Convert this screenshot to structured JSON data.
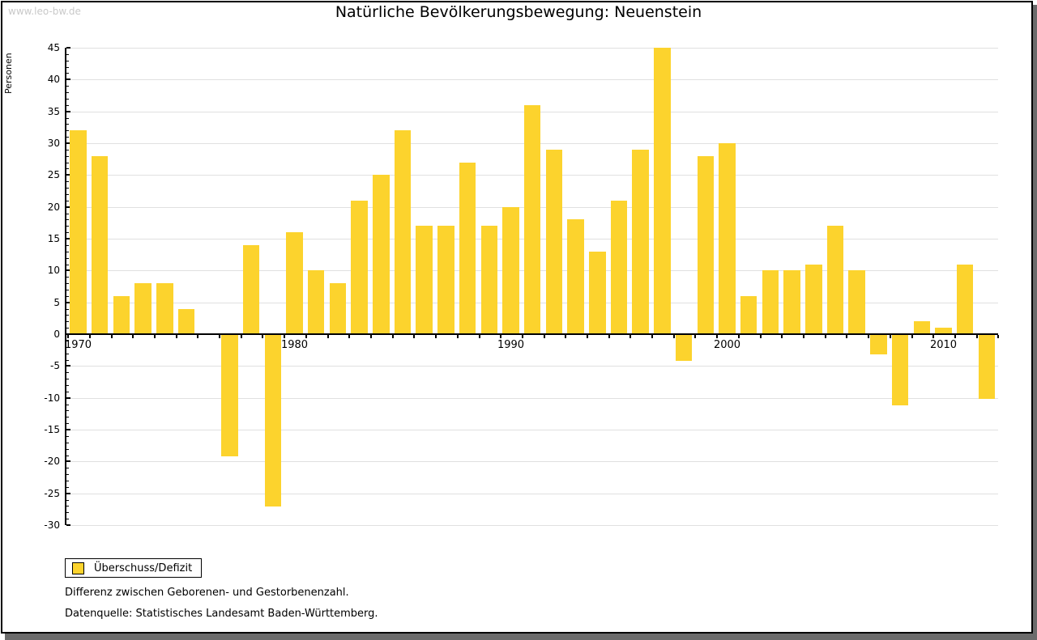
{
  "watermark": "www.leo-bw.de",
  "title": "Natürliche Bevölkerungsbewegung: Neuenstein",
  "legend": {
    "label": "Überschuss/Defizit"
  },
  "footnotes": [
    "Differenz zwischen Geborenen- und Gestorbenenzahl.",
    "Datenquelle: Statistisches Landesamt Baden-Württemberg."
  ],
  "colors": {
    "bar": "#FCD32D",
    "grid": "#E0E0E0",
    "axis": "#000000",
    "text": "#000000",
    "watermark": "#C9C9C9",
    "shadow": "#6B6B6B",
    "legend_border": "#000000",
    "background": "#FFFFFF"
  },
  "chart_data": {
    "type": "bar",
    "title": "Natürliche Bevölkerungsbewegung: Neuenstein",
    "series_name": "Überschuss/Defizit",
    "xlabel": "",
    "ylabel": "Personen",
    "ylim": [
      -30,
      45
    ],
    "ytick_step": 5,
    "grid": true,
    "legend_position": "bottom-left",
    "xticks_labeled": [
      1970,
      1980,
      1990,
      2000,
      2010
    ],
    "x": [
      1970,
      1971,
      1972,
      1973,
      1974,
      1975,
      1976,
      1977,
      1978,
      1979,
      1980,
      1981,
      1982,
      1983,
      1984,
      1985,
      1986,
      1987,
      1988,
      1989,
      1990,
      1991,
      1992,
      1993,
      1994,
      1995,
      1996,
      1997,
      1998,
      1999,
      2000,
      2001,
      2002,
      2003,
      2004,
      2005,
      2006,
      2007,
      2008,
      2009,
      2010,
      2011,
      2012
    ],
    "values": [
      32,
      28,
      6,
      8,
      8,
      4,
      0,
      -19,
      14,
      -27,
      16,
      10,
      8,
      21,
      25,
      32,
      17,
      17,
      27,
      17,
      20,
      36,
      29,
      18,
      13,
      21,
      29,
      45,
      -4,
      28,
      30,
      6,
      10,
      10,
      11,
      17,
      10,
      -3,
      -11,
      2,
      1,
      11,
      -10
    ]
  }
}
